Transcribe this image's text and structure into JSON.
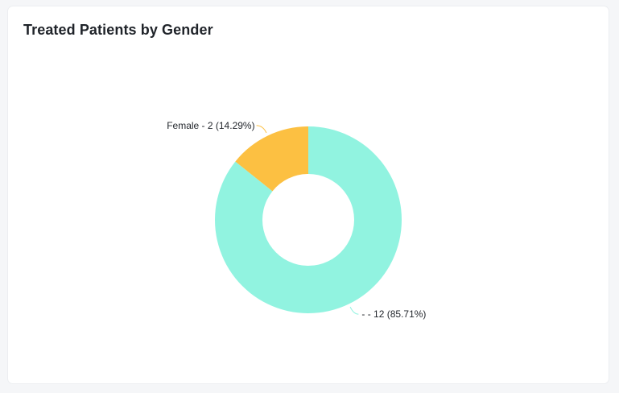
{
  "title": "Treated Patients by Gender",
  "chart_data": {
    "type": "pie",
    "donut": true,
    "title": "Treated Patients by Gender",
    "slices": [
      {
        "label": "Female - 2 (14.29%)",
        "category": "Female",
        "value": 2,
        "percent": 14.29,
        "color": "#fcc042"
      },
      {
        "label": "- - 12 (85.71%)",
        "category": "-",
        "value": 12,
        "percent": 85.71,
        "color": "#91f3e0"
      }
    ],
    "legend": "none"
  }
}
